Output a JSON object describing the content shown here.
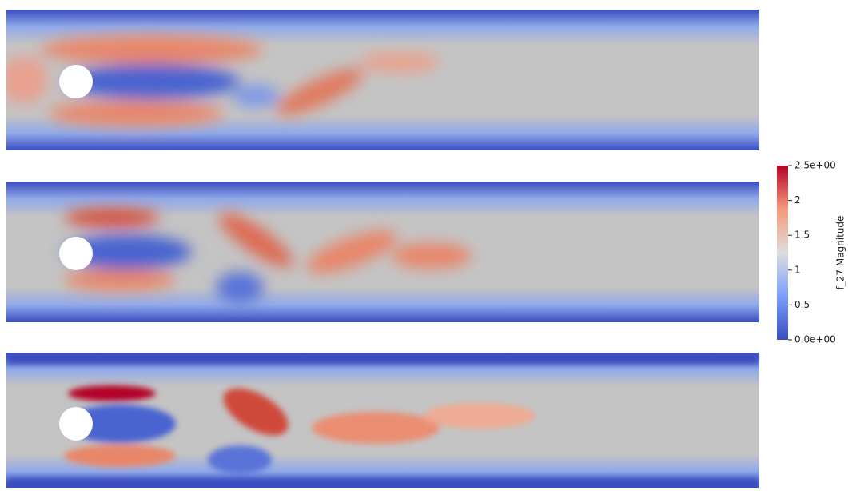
{
  "colorbar": {
    "title": "f_27 Magnitude",
    "lim": [
      0,
      2.5
    ],
    "ticks": [
      {
        "value": 2.5,
        "label": "2.5e+00"
      },
      2,
      1.5,
      1,
      0.5,
      {
        "value": 0,
        "label": "0.0e+00"
      }
    ]
  }
}
